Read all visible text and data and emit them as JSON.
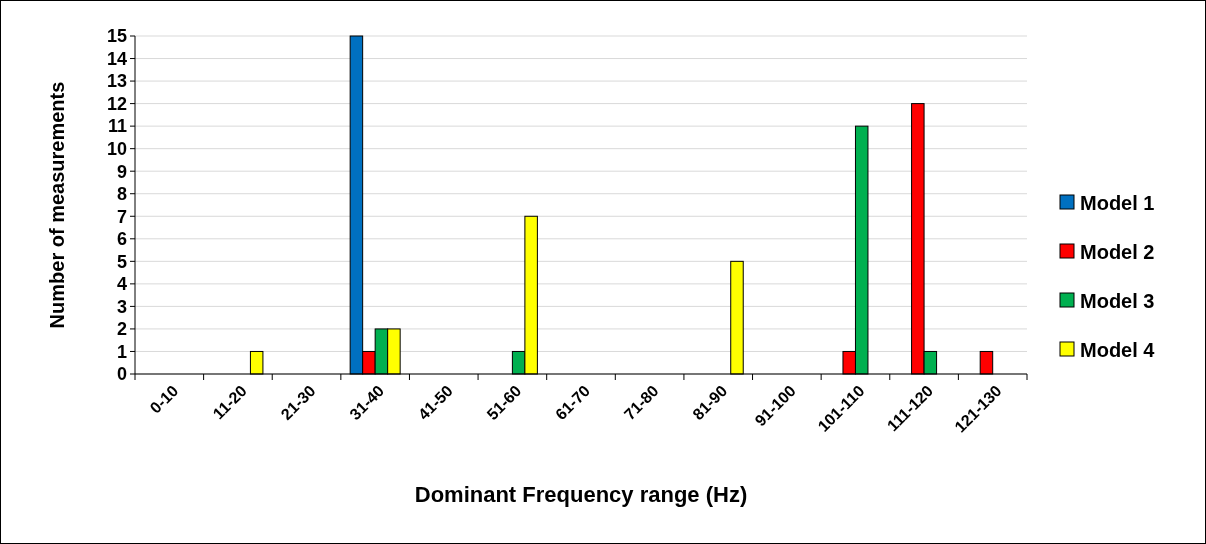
{
  "chart_data": {
    "type": "bar",
    "xlabel": "Dominant Frequency range (Hz)",
    "ylabel": "Number of measurements",
    "categories": [
      "0-10",
      "11-20",
      "21-30",
      "31-40",
      "41-50",
      "51-60",
      "61-70",
      "71-80",
      "81-90",
      "91-100",
      "101-110",
      "111-120",
      "121-130"
    ],
    "series": [
      {
        "name": "Model 1",
        "color": "#0070c0",
        "values": [
          0,
          0,
          0,
          15,
          0,
          0,
          0,
          0,
          0,
          0,
          0,
          0,
          0
        ]
      },
      {
        "name": "Model 2",
        "color": "#ff0000",
        "values": [
          0,
          0,
          0,
          1,
          0,
          0,
          0,
          0,
          0,
          0,
          1,
          12,
          1
        ]
      },
      {
        "name": "Model 3",
        "color": "#00b050",
        "values": [
          0,
          0,
          0,
          2,
          0,
          1,
          0,
          0,
          0,
          0,
          11,
          1,
          0
        ]
      },
      {
        "name": "Model 4",
        "color": "#ffff00",
        "values": [
          0,
          1,
          0,
          2,
          0,
          7,
          0,
          0,
          5,
          0,
          0,
          0,
          0
        ]
      }
    ],
    "ylim": [
      0,
      15
    ],
    "yticks": [
      0,
      1,
      2,
      3,
      4,
      5,
      6,
      7,
      8,
      9,
      10,
      11,
      12,
      13,
      14,
      15
    ],
    "grid": "y",
    "legend": "right"
  }
}
